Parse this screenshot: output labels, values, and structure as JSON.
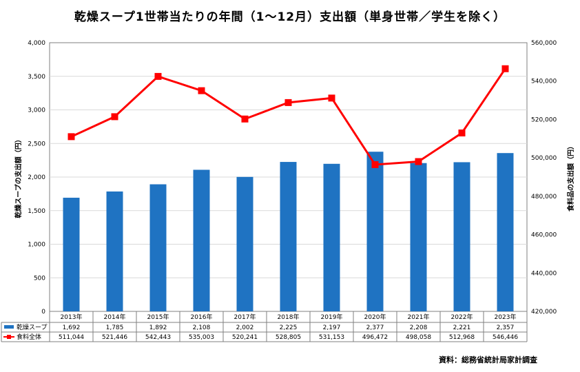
{
  "title": "乾燥スープ1世帯当たりの年間（1～12月）支出額（単身世帯／学生を除く）",
  "source": "資料：総務省統計局家計調査",
  "chart_data": {
    "type": "bar+line",
    "categories": [
      "2013年",
      "2014年",
      "2015年",
      "2016年",
      "2017年",
      "2018年",
      "2019年",
      "2020年",
      "2021年",
      "2022年",
      "2023年"
    ],
    "series": [
      {
        "name": "乾燥スープ",
        "type": "bar",
        "axis": "left",
        "color": "#1f73c2",
        "values": [
          1692,
          1785,
          1892,
          2108,
          2002,
          2225,
          2197,
          2377,
          2208,
          2221,
          2357
        ],
        "labels": [
          "1,692",
          "1,785",
          "1,892",
          "2,108",
          "2,002",
          "2,225",
          "2,197",
          "2,377",
          "2,208",
          "2,221",
          "2,357"
        ]
      },
      {
        "name": "食料全体",
        "type": "line",
        "axis": "right",
        "color": "#ff0000",
        "values": [
          511044,
          521446,
          542443,
          535003,
          520241,
          528805,
          531153,
          496472,
          498058,
          512968,
          546446
        ],
        "labels": [
          "511,044",
          "521,446",
          "542,443",
          "535,003",
          "520,241",
          "528,805",
          "531,153",
          "496,472",
          "498,058",
          "512,968",
          "546,446"
        ]
      }
    ],
    "ylabel_left": "乾燥スープの支出額（円）",
    "ylabel_right": "食料品の支出額（円）",
    "ylim_left": [
      0,
      4000
    ],
    "ylim_right": [
      420000,
      560000
    ],
    "yticks_left": [
      "0",
      "500",
      "1,000",
      "1,500",
      "2,000",
      "2,500",
      "3,000",
      "3,500",
      "4,000"
    ],
    "yticks_right": [
      "420,000",
      "440,000",
      "460,000",
      "480,000",
      "500,000",
      "520,000",
      "540,000",
      "560,000"
    ],
    "grid": true,
    "legend": "data-table"
  }
}
